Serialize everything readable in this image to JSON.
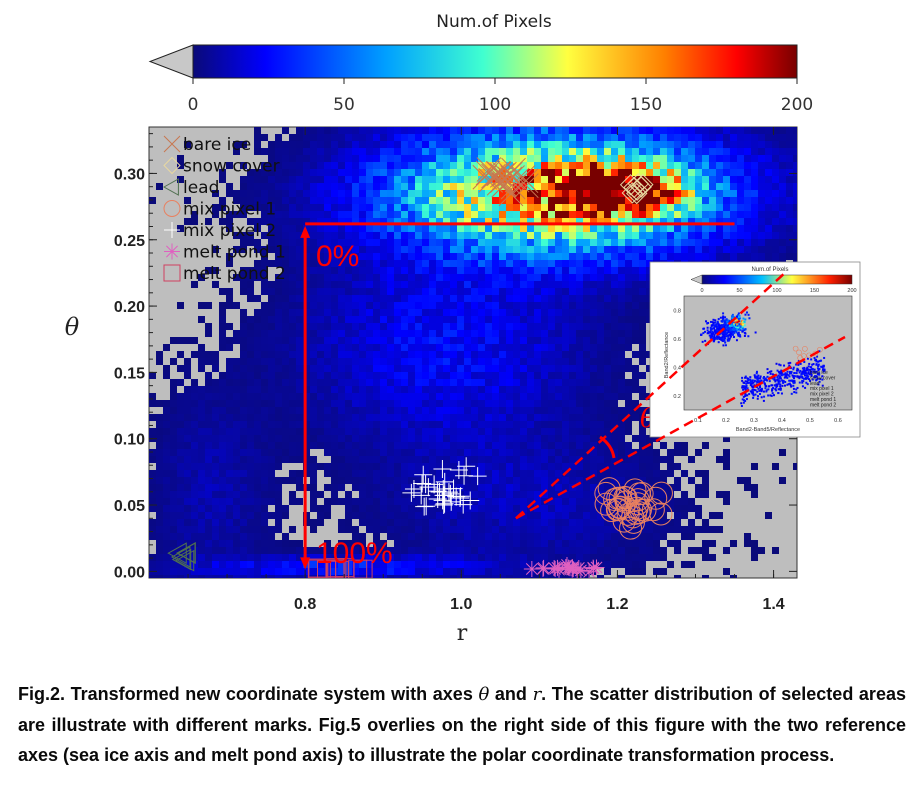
{
  "chart_data": {
    "type": "heatmap",
    "xlabel": "r",
    "ylabel": "θ",
    "xlim": [
      0.6,
      1.43
    ],
    "ylim": [
      -0.005,
      0.335
    ],
    "x_ticks": [
      "0.8",
      "1.0",
      "1.2",
      "1.4"
    ],
    "x_tick_values": [
      0.8,
      1.0,
      1.2,
      1.4
    ],
    "y_ticks": [
      "0.00",
      "0.05",
      "0.10",
      "0.15",
      "0.20",
      "0.25",
      "0.30"
    ],
    "y_tick_values": [
      0.0,
      0.05,
      0.1,
      0.15,
      0.2,
      0.25,
      0.3
    ],
    "background_color": "#bebebe",
    "colorbar": {
      "title": "Num.of Pixels",
      "ticks": [
        "0",
        "50",
        "100",
        "150",
        "200"
      ],
      "tick_values": [
        0,
        50,
        100,
        150,
        200
      ],
      "range": [
        0,
        200
      ],
      "colormap": [
        "#0a0a78",
        "#0000ff",
        "#00a0ff",
        "#40ffd0",
        "#ffff40",
        "#ff8000",
        "#ff0000",
        "#780000"
      ]
    },
    "legend": {
      "placement": "top-left",
      "entries": [
        {
          "label": "bare ice",
          "marker": "x",
          "color": "#c87850"
        },
        {
          "label": "snow cover",
          "marker": "diamond",
          "color": "#e8d8a0"
        },
        {
          "label": "lead",
          "marker": "triangle-left",
          "color": "#507050"
        },
        {
          "label": "mix pixel 1",
          "marker": "circle",
          "color": "#e88060"
        },
        {
          "label": "mix pixel 2",
          "marker": "plus",
          "color": "#ffffff"
        },
        {
          "label": "melt pond 1",
          "marker": "asterisk",
          "color": "#e060c0"
        },
        {
          "label": "melt pond 2",
          "marker": "square",
          "color": "#d04060"
        }
      ]
    },
    "density_clusters": [
      {
        "name": "ice",
        "center": [
          1.12,
          0.285
        ],
        "spread": [
          0.14,
          0.03
        ],
        "peak": 150
      },
      {
        "name": "ice-hotspot",
        "center": [
          1.2,
          0.288
        ],
        "spread": [
          0.05,
          0.012
        ],
        "peak": 180
      },
      {
        "name": "transition",
        "center": [
          0.98,
          0.17
        ],
        "spread": [
          0.12,
          0.05
        ],
        "peak": 25
      },
      {
        "name": "lower",
        "center": [
          1.08,
          0.05
        ],
        "spread": [
          0.12,
          0.035
        ],
        "peak": 12
      },
      {
        "name": "bottom",
        "center": [
          0.85,
          0.003
        ],
        "spread": [
          0.12,
          0.006
        ],
        "peak": 30
      },
      {
        "name": "left-tail",
        "center": [
          0.68,
          0.06
        ],
        "spread": [
          0.05,
          0.05
        ],
        "peak": 10
      }
    ],
    "marker_clusters": [
      {
        "label": "bare ice",
        "center": [
          1.06,
          0.295
        ],
        "spread": [
          0.05,
          0.012
        ],
        "count": 24
      },
      {
        "label": "snow cover",
        "center": [
          1.23,
          0.288
        ],
        "spread": [
          0.02,
          0.01
        ],
        "count": 8
      },
      {
        "label": "lead",
        "center": [
          0.645,
          0.012
        ],
        "spread": [
          0.012,
          0.006
        ],
        "count": 6
      },
      {
        "label": "mix pixel 1",
        "center": [
          1.22,
          0.05
        ],
        "spread": [
          0.05,
          0.025
        ],
        "count": 34
      },
      {
        "label": "mix pixel 2",
        "center": [
          0.98,
          0.06
        ],
        "spread": [
          0.06,
          0.025
        ],
        "count": 34
      },
      {
        "label": "melt pond 1",
        "center": [
          1.14,
          0.002
        ],
        "spread": [
          0.05,
          0.003
        ],
        "count": 22
      },
      {
        "label": "melt pond 2",
        "center": [
          0.84,
          0.002
        ],
        "spread": [
          0.04,
          0.002
        ],
        "count": 10
      }
    ],
    "annotations": {
      "zero_percent": "0%",
      "hundred_percent": "100%",
      "theta_symbol": "θ",
      "reference_theta": 0.262,
      "reference_r": 0.8,
      "reference_line_r_end": 1.35,
      "origin": [
        1.07,
        0.04
      ],
      "overlay_color": "#ff0000"
    },
    "inset": {
      "colorbar_title": "Num.of Pixels",
      "colorbar_ticks": [
        "0",
        "50",
        "100",
        "150",
        "200"
      ],
      "xlabel": "Band2-Band5/Reflectance",
      "ylabel": "Band2/Reflectance",
      "x_ticks": [
        "0.1",
        "0.2",
        "0.3",
        "0.4",
        "0.5",
        "0.6"
      ],
      "y_ticks": [
        "0.2",
        "0.4",
        "0.6",
        "0.8"
      ],
      "legend": [
        "bare ice",
        "snow cover",
        "lead",
        "mix pixel 1",
        "mix pixel 2",
        "melt pond 1",
        "melt pond 2"
      ]
    }
  },
  "caption": {
    "prefix": "Fig.2. Transformed new coordinate system with axes",
    "theta": "θ",
    "and": "and",
    "r": "r",
    "rest": ". The scatter distribution of selected areas are illustrate with different marks. Fig.5 overlies on the right side of this figure with the two reference axes (sea ice axis and melt pond axis) to illustrate the polar coordinate transformation process."
  }
}
